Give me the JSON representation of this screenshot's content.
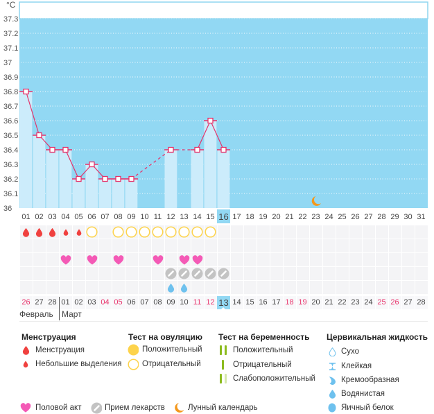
{
  "chart_data": {
    "type": "line",
    "title": "",
    "xlabel": "",
    "ylabel": "°C",
    "x": [
      "01",
      "02",
      "03",
      "04",
      "05",
      "06",
      "07",
      "08",
      "09",
      "10",
      "11",
      "12",
      "13",
      "14",
      "15",
      "16",
      "17",
      "18",
      "19",
      "20",
      "21",
      "22",
      "23",
      "24",
      "25",
      "26",
      "27",
      "28",
      "29",
      "30",
      "31"
    ],
    "y": [
      36.8,
      36.5,
      36.4,
      36.4,
      36.2,
      36.3,
      36.2,
      36.2,
      36.2,
      null,
      null,
      36.4,
      null,
      36.4,
      36.6,
      36.4,
      null,
      null,
      null,
      null,
      null,
      null,
      null,
      null,
      null,
      null,
      null,
      null,
      null,
      null,
      null
    ],
    "yticks": [
      "36",
      "36.1",
      "36.2",
      "36.3",
      "36.4",
      "36.5",
      "36.6",
      "36.7",
      "36.8",
      "36.9",
      "37",
      "37.1",
      "37.2",
      "37.3"
    ],
    "ylim": [
      36,
      37.3
    ],
    "grid": true,
    "highlight_x": "16",
    "annotations": [
      {
        "x": "23",
        "icon": "moon-icon"
      }
    ],
    "missing_days_connected_with": "dashed-line"
  },
  "calendar": {
    "dates": [
      {
        "label": "26",
        "weekend": true
      },
      {
        "label": "27",
        "weekend": false
      },
      {
        "label": "28",
        "weekend": false
      },
      {
        "label": "01",
        "weekend": false
      },
      {
        "label": "02",
        "weekend": false
      },
      {
        "label": "03",
        "weekend": false
      },
      {
        "label": "04",
        "weekend": true
      },
      {
        "label": "05",
        "weekend": true
      },
      {
        "label": "06",
        "weekend": false
      },
      {
        "label": "07",
        "weekend": false
      },
      {
        "label": "08",
        "weekend": false
      },
      {
        "label": "09",
        "weekend": false
      },
      {
        "label": "10",
        "weekend": false
      },
      {
        "label": "11",
        "weekend": true
      },
      {
        "label": "12",
        "weekend": true
      },
      {
        "label": "13",
        "weekend": false
      },
      {
        "label": "14",
        "weekend": false
      },
      {
        "label": "15",
        "weekend": false
      },
      {
        "label": "16",
        "weekend": false
      },
      {
        "label": "17",
        "weekend": false
      },
      {
        "label": "18",
        "weekend": true
      },
      {
        "label": "19",
        "weekend": true
      },
      {
        "label": "20",
        "weekend": false
      },
      {
        "label": "21",
        "weekend": false
      },
      {
        "label": "22",
        "weekend": false
      },
      {
        "label": "23",
        "weekend": false
      },
      {
        "label": "24",
        "weekend": false
      },
      {
        "label": "25",
        "weekend": true
      },
      {
        "label": "26",
        "weekend": true
      },
      {
        "label": "27",
        "weekend": false
      },
      {
        "label": "28",
        "weekend": false
      }
    ],
    "current_date": "13",
    "months": {
      "first": "Февраль",
      "second": "Март"
    }
  },
  "tracker_rows": [
    {
      "name": "menstruation-ovulation-row",
      "events": [
        {
          "day": 1,
          "icon": "menstruation-icon"
        },
        {
          "day": 2,
          "icon": "menstruation-icon"
        },
        {
          "day": 3,
          "icon": "menstruation-icon"
        },
        {
          "day": 4,
          "icon": "spotting-icon"
        },
        {
          "day": 5,
          "icon": "spotting-icon"
        },
        {
          "day": 6,
          "icon": "ovulation-negative-icon"
        },
        {
          "day": 8,
          "icon": "ovulation-negative-icon"
        },
        {
          "day": 9,
          "icon": "ovulation-negative-icon"
        },
        {
          "day": 10,
          "icon": "ovulation-negative-icon"
        },
        {
          "day": 11,
          "icon": "ovulation-negative-icon"
        },
        {
          "day": 12,
          "icon": "ovulation-negative-icon"
        },
        {
          "day": 13,
          "icon": "ovulation-negative-icon"
        },
        {
          "day": 14,
          "icon": "ovulation-negative-icon"
        },
        {
          "day": 15,
          "icon": "ovulation-negative-icon"
        }
      ]
    },
    {
      "name": "pregnancy-test-row",
      "events": []
    },
    {
      "name": "intercourse-row",
      "events": [
        {
          "day": 4,
          "icon": "intercourse-icon"
        },
        {
          "day": 6,
          "icon": "intercourse-icon"
        },
        {
          "day": 8,
          "icon": "intercourse-icon"
        },
        {
          "day": 11,
          "icon": "intercourse-icon"
        },
        {
          "day": 13,
          "icon": "intercourse-icon"
        },
        {
          "day": 14,
          "icon": "intercourse-icon"
        }
      ]
    },
    {
      "name": "medication-row",
      "events": [
        {
          "day": 12,
          "icon": "medication-icon"
        },
        {
          "day": 13,
          "icon": "medication-icon"
        },
        {
          "day": 14,
          "icon": "medication-icon"
        },
        {
          "day": 15,
          "icon": "medication-icon"
        },
        {
          "day": 16,
          "icon": "medication-icon"
        }
      ]
    },
    {
      "name": "cervical-fluid-row",
      "events": [
        {
          "day": 12,
          "icon": "cervical-watery-icon"
        },
        {
          "day": 13,
          "icon": "cervical-watery-icon"
        }
      ]
    }
  ],
  "legend": {
    "menstruation": {
      "title": "Менструация",
      "items": [
        {
          "label": "Менструация",
          "icon": "menstruation-icon"
        },
        {
          "label": "Небольшие выделения",
          "icon": "spotting-icon"
        }
      ]
    },
    "ovulation_test": {
      "title": "Тест на овуляцию",
      "items": [
        {
          "label": "Положительный",
          "icon": "ovulation-positive-icon"
        },
        {
          "label": "Отрицательный",
          "icon": "ovulation-negative-icon"
        }
      ]
    },
    "pregnancy_test": {
      "title": "Тест на беременность",
      "items": [
        {
          "label": "Положительный",
          "icon": "pregnancy-positive-icon"
        },
        {
          "label": "Отрицательный",
          "icon": "pregnancy-negative-icon"
        },
        {
          "label": "Слабоположительный",
          "icon": "pregnancy-weak-icon"
        }
      ]
    },
    "cervical_fluid": {
      "title": "Цервикальная жидкость",
      "items": [
        {
          "label": "Сухо",
          "icon": "cervical-dry-icon"
        },
        {
          "label": "Клейкая",
          "icon": "cervical-sticky-icon"
        },
        {
          "label": "Кремообразная",
          "icon": "cervical-creamy-icon"
        },
        {
          "label": "Водянистая",
          "icon": "cervical-watery-icon"
        },
        {
          "label": "Яичный белок",
          "icon": "cervical-eggwhite-icon"
        }
      ]
    },
    "other": [
      {
        "label": "Половой акт",
        "icon": "intercourse-icon"
      },
      {
        "label": "Прием лекарств",
        "icon": "medication-icon"
      },
      {
        "label": "Лунный календарь",
        "icon": "moon-icon"
      }
    ]
  },
  "colors": {
    "chart_bg": "#92d8f3",
    "bar": "#ccecfb",
    "line": "#e5326a",
    "weekend": "#e8336b",
    "menstruation": "#f0413f",
    "ovulation": "#fdd34b",
    "pregnancy": "#8cbb1e",
    "pregnancy_weak": "#d6e8ab",
    "cervical": "#6ec1ee",
    "intercourse": "#f45ab6",
    "medication": "#c3c3c3",
    "moon": "#f4981c"
  }
}
